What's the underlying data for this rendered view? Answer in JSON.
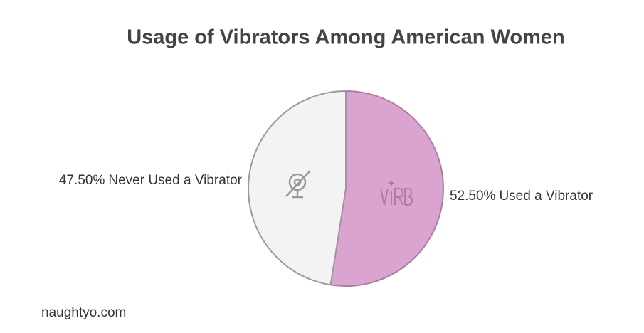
{
  "chart_data": {
    "type": "pie",
    "title": "Usage of Vibrators Among American Women",
    "categories": [
      "Used a Vibrator",
      "Never Used a Vibrator"
    ],
    "values": [
      52.5,
      47.5
    ],
    "value_labels": [
      "52.50%",
      "47.50%"
    ],
    "colors": [
      "#dba3d0",
      "#f3f3f3"
    ],
    "stroke_colors": [
      "#b07aa4",
      "#9a9a9a"
    ],
    "source": "naughtyo.com"
  }
}
